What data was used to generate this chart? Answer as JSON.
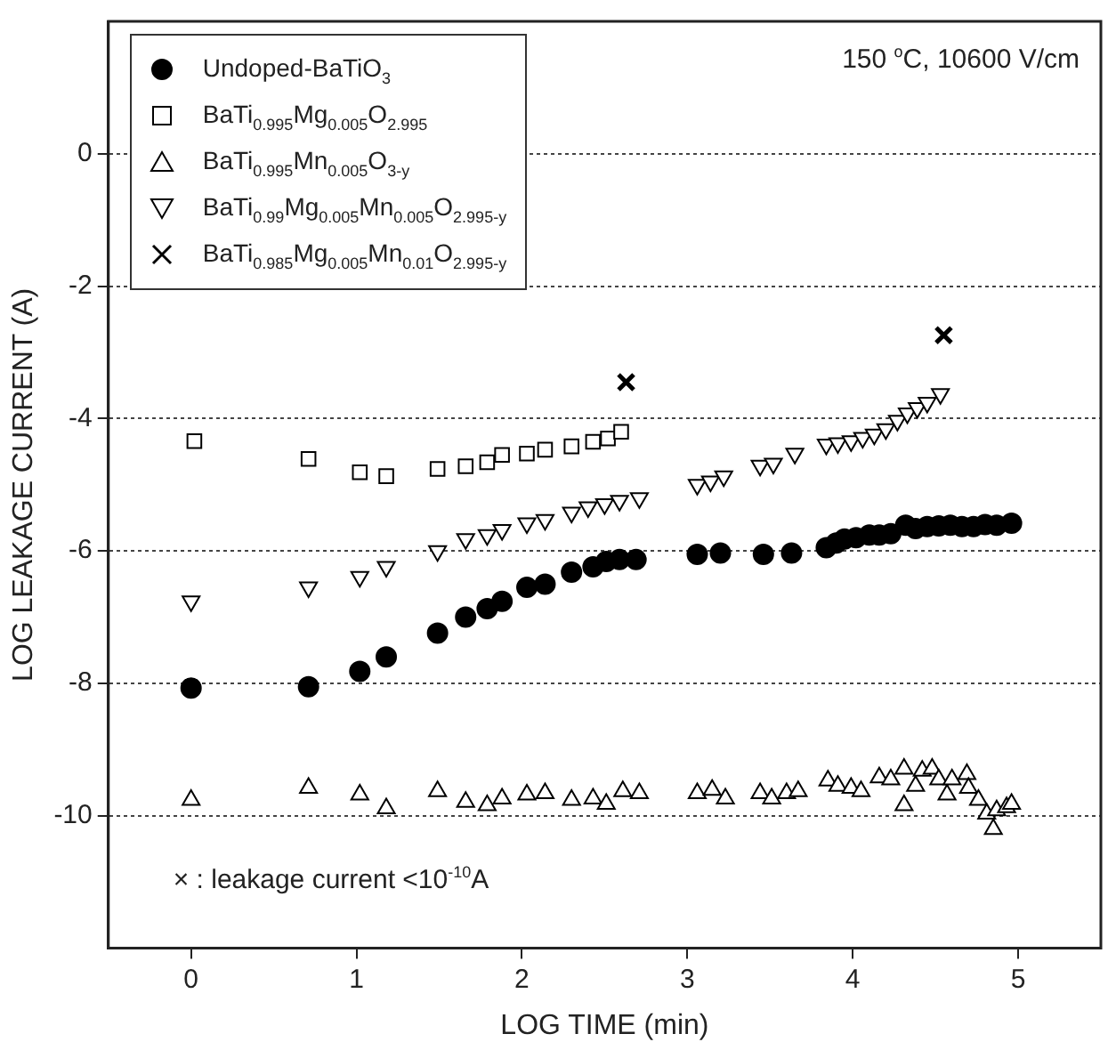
{
  "chart_data": {
    "type": "scatter",
    "xlabel": "LOG TIME (min)",
    "ylabel": "LOG LEAKAGE CURRENT (A)",
    "xlim": [
      -0.5,
      5.5
    ],
    "xticks": [
      0,
      1,
      2,
      3,
      4,
      5
    ],
    "ylim": [
      -12,
      2
    ],
    "yticks": [
      -10,
      -8,
      -6,
      -4,
      -2,
      0
    ],
    "grid": "y",
    "legend": "top left",
    "annotations": [
      "150 $^{o}$C, 10600 V/cm",
      "× : leakage current <10$^{-10}$A"
    ],
    "series": [
      {
        "name": "Undoped-BaTiO$_{3}$",
        "color": "#000000",
        "marker": "circle",
        "x": [
          0,
          0.71,
          1.02,
          1.18,
          1.49,
          1.66,
          1.79,
          1.88,
          2.03,
          2.14,
          2.3,
          2.43,
          2.51,
          2.59,
          2.69,
          3.06,
          3.2,
          3.46,
          3.63,
          3.84,
          3.9,
          3.95,
          4.02,
          4.1,
          4.16,
          4.23,
          4.32,
          4.38,
          4.45,
          4.52,
          4.59,
          4.66,
          4.73,
          4.8,
          4.87,
          4.96
        ],
        "values": [
          -8.07,
          -8.05,
          -7.82,
          -7.6,
          -7.24,
          -7.0,
          -6.87,
          -6.76,
          -6.55,
          -6.5,
          -6.32,
          -6.24,
          -6.16,
          -6.13,
          -6.13,
          -6.05,
          -6.03,
          -6.05,
          -6.03,
          -5.95,
          -5.88,
          -5.82,
          -5.8,
          -5.76,
          -5.76,
          -5.74,
          -5.61,
          -5.66,
          -5.63,
          -5.62,
          -5.61,
          -5.63,
          -5.63,
          -5.6,
          -5.61,
          -5.58
        ]
      },
      {
        "name": "BaTi$_{0.995}$Mg$_{0.005}$O$_{2.995}$",
        "color": "#000000",
        "marker": "square",
        "x": [
          0.02,
          0.71,
          1.02,
          1.18,
          1.49,
          1.66,
          1.79,
          1.88,
          2.03,
          2.14,
          2.3,
          2.43,
          2.52,
          2.6
        ],
        "values": [
          -4.34,
          -4.61,
          -4.81,
          -4.87,
          -4.76,
          -4.72,
          -4.66,
          -4.55,
          -4.53,
          -4.47,
          -4.42,
          -4.35,
          -4.3,
          -4.2
        ]
      },
      {
        "name": "BaTi$_{0.995}$Mn$_{0.005}$O$_{3-y}$",
        "color": "#000000",
        "marker": "triangle",
        "x": [
          0,
          0.71,
          1.02,
          1.18,
          1.49,
          1.66,
          1.79,
          1.88,
          2.03,
          2.14,
          2.3,
          2.43,
          2.51,
          2.61,
          2.71,
          3.06,
          3.15,
          3.23,
          3.44,
          3.51,
          3.6,
          3.67,
          3.85,
          3.91,
          3.99,
          4.05,
          4.16,
          4.23,
          4.31,
          4.31,
          4.38,
          4.42,
          4.48,
          4.52,
          4.57,
          4.6,
          4.69,
          4.7,
          4.76,
          4.81,
          4.85,
          4.87,
          4.93,
          4.96
        ],
        "values": [
          -9.76,
          -9.58,
          -9.68,
          -9.89,
          -9.63,
          -9.79,
          -9.84,
          -9.74,
          -9.68,
          -9.66,
          -9.76,
          -9.74,
          -9.82,
          -9.63,
          -9.66,
          -9.66,
          -9.61,
          -9.74,
          -9.66,
          -9.74,
          -9.66,
          -9.63,
          -9.47,
          -9.55,
          -9.58,
          -9.63,
          -9.42,
          -9.45,
          -9.29,
          -9.84,
          -9.55,
          -9.32,
          -9.29,
          -9.45,
          -9.68,
          -9.45,
          -9.37,
          -9.58,
          -9.76,
          -9.97,
          -10.2,
          -9.92,
          -9.87,
          -9.82
        ]
      },
      {
        "name": "BaTi$_{0.99}$Mg$_{0.005}$Mn$_{0.005}$O$_{2.995-y}$",
        "color": "#000000",
        "marker": "triangle_down",
        "x": [
          0,
          0.71,
          1.02,
          1.18,
          1.49,
          1.66,
          1.79,
          1.88,
          2.03,
          2.14,
          2.3,
          2.4,
          2.5,
          2.59,
          2.71,
          3.06,
          3.14,
          3.22,
          3.44,
          3.52,
          3.65,
          3.84,
          3.91,
          3.99,
          4.06,
          4.13,
          4.2,
          4.27,
          4.33,
          4.39,
          4.45,
          4.53
        ],
        "values": [
          -6.76,
          -6.55,
          -6.39,
          -6.24,
          -6.0,
          -5.82,
          -5.76,
          -5.68,
          -5.58,
          -5.53,
          -5.42,
          -5.34,
          -5.29,
          -5.24,
          -5.2,
          -5.0,
          -4.95,
          -4.87,
          -4.71,
          -4.68,
          -4.53,
          -4.39,
          -4.37,
          -4.34,
          -4.29,
          -4.24,
          -4.16,
          -4.03,
          -3.92,
          -3.84,
          -3.76,
          -3.63
        ]
      },
      {
        "name": "BaTi$_{0.985}$Mg$_{0.005}$Mn$_{0.01}$O$_{2.995-y}$",
        "color": "#000000",
        "marker": "cross",
        "x": [
          2.63,
          4.55
        ],
        "values": [
          -3.45,
          -2.74
        ]
      }
    ]
  }
}
